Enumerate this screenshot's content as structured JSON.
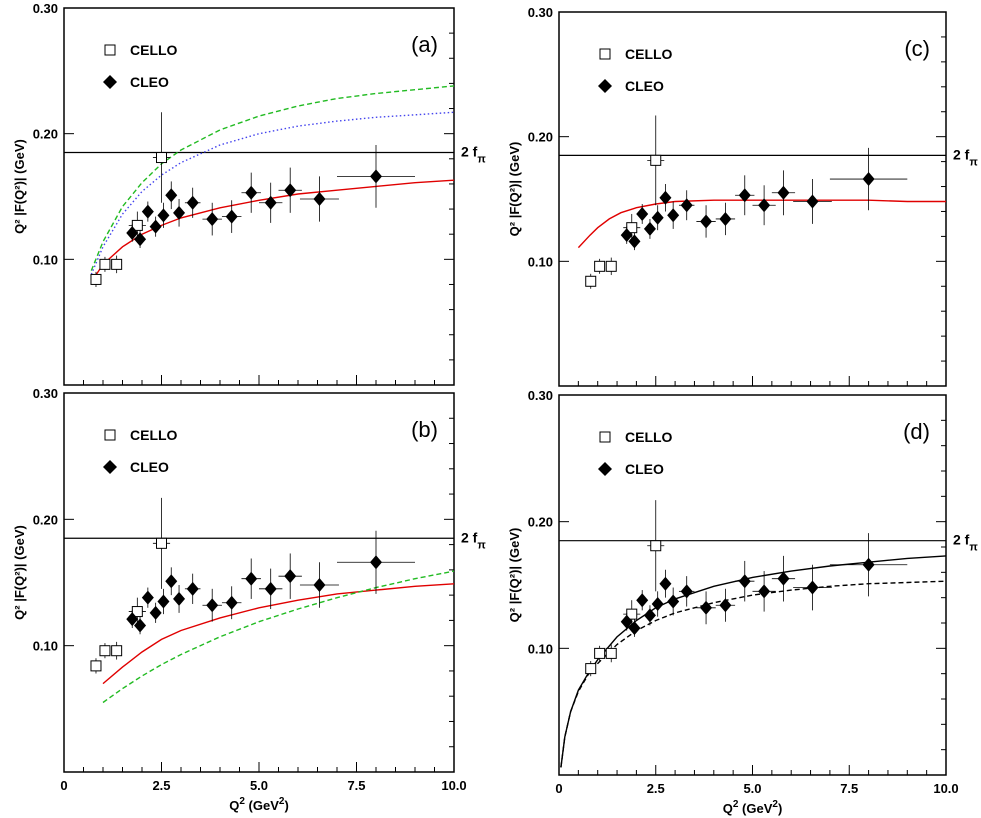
{
  "chart_data": {
    "shared": {
      "xlabel": "Q",
      "xlabel_sup": "2",
      "xlabel_unit": " (GeV",
      "xlabel_unit_sup": "2",
      "xlabel_unit_close": ")",
      "ylabel": "Q² |F(Q²)| (GeV)",
      "xlim": [
        0,
        10
      ],
      "ylim": [
        0,
        0.3
      ],
      "x_ticks": [
        0,
        2.5,
        5,
        7.5,
        10
      ],
      "x_tick_labels": [
        "0",
        "2.5",
        "5.0",
        "7.5",
        "10.0"
      ],
      "y_ticks": [
        0.1,
        0.2,
        0.3
      ],
      "y_tick_labels": [
        "0.10",
        "0.20",
        "0.30"
      ],
      "reference_line": {
        "y": 0.185,
        "label_main": "2 f",
        "label_sub": "π"
      },
      "legend": [
        {
          "name": "CELLO",
          "marker": "open-square"
        },
        {
          "name": "CLEO",
          "marker": "filled-diamond"
        }
      ],
      "cello": [
        {
          "x": 0.82,
          "y": 0.084,
          "xerr": 0.08,
          "yerr": 0.006
        },
        {
          "x": 1.05,
          "y": 0.096,
          "xerr": 0.13,
          "yerr": 0.006
        },
        {
          "x": 1.35,
          "y": 0.096,
          "xerr": 0.13,
          "yerr": 0.007
        },
        {
          "x": 1.88,
          "y": 0.127,
          "xerr": 0.22,
          "yerr": 0.011
        },
        {
          "x": 2.5,
          "y": 0.181,
          "xerr": 0.22,
          "yerr": 0.036
        }
      ],
      "cleo": [
        {
          "x": 1.75,
          "y": 0.121,
          "xerr": 0.1,
          "yerr": 0.007
        },
        {
          "x": 1.95,
          "y": 0.116,
          "xerr": 0.1,
          "yerr": 0.007
        },
        {
          "x": 2.15,
          "y": 0.138,
          "xerr": 0.1,
          "yerr": 0.008
        },
        {
          "x": 2.35,
          "y": 0.126,
          "xerr": 0.1,
          "yerr": 0.008
        },
        {
          "x": 2.55,
          "y": 0.135,
          "xerr": 0.1,
          "yerr": 0.01
        },
        {
          "x": 2.75,
          "y": 0.151,
          "xerr": 0.1,
          "yerr": 0.011
        },
        {
          "x": 2.95,
          "y": 0.137,
          "xerr": 0.1,
          "yerr": 0.011
        },
        {
          "x": 3.3,
          "y": 0.145,
          "xerr": 0.2,
          "yerr": 0.012
        },
        {
          "x": 3.8,
          "y": 0.132,
          "xerr": 0.25,
          "yerr": 0.013
        },
        {
          "x": 4.3,
          "y": 0.134,
          "xerr": 0.25,
          "yerr": 0.013
        },
        {
          "x": 4.8,
          "y": 0.153,
          "xerr": 0.25,
          "yerr": 0.016
        },
        {
          "x": 5.3,
          "y": 0.145,
          "xerr": 0.3,
          "yerr": 0.016
        },
        {
          "x": 5.8,
          "y": 0.155,
          "xerr": 0.3,
          "yerr": 0.018
        },
        {
          "x": 6.55,
          "y": 0.148,
          "xerr": 0.5,
          "yerr": 0.018
        },
        {
          "x": 8.0,
          "y": 0.166,
          "xerr": 1.0,
          "yerr": 0.025
        }
      ]
    },
    "panels": [
      {
        "id": "a",
        "label": "(a)",
        "show_y_tick_labels": true,
        "show_x_tick_labels": false,
        "show_xlabel": false,
        "series": [
          {
            "style": "solid",
            "color": "#e00000",
            "x": [
              0.7,
              1.0,
              1.5,
              2.0,
              2.5,
              3.0,
              4.0,
              5.0,
              6.0,
              7.0,
              8.0,
              9.0,
              10.0
            ],
            "y": [
              0.082,
              0.096,
              0.11,
              0.12,
              0.127,
              0.133,
              0.141,
              0.147,
              0.152,
              0.155,
              0.158,
              0.161,
              0.163
            ]
          },
          {
            "style": "dashed",
            "color": "#22bb22",
            "x": [
              0.7,
              1.0,
              1.5,
              2.0,
              2.5,
              3.0,
              4.0,
              5.0,
              6.0,
              7.0,
              8.0,
              9.0,
              10.0
            ],
            "y": [
              0.091,
              0.114,
              0.142,
              0.161,
              0.176,
              0.187,
              0.203,
              0.214,
              0.222,
              0.228,
              0.232,
              0.235,
              0.238
            ]
          },
          {
            "style": "dotted",
            "color": "#4444ee",
            "x": [
              0.7,
              1.0,
              1.5,
              2.0,
              2.5,
              3.0,
              4.0,
              5.0,
              6.0,
              7.0,
              8.0,
              9.0,
              10.0
            ],
            "y": [
              0.088,
              0.11,
              0.136,
              0.154,
              0.167,
              0.177,
              0.191,
              0.2,
              0.206,
              0.21,
              0.213,
              0.215,
              0.217
            ]
          }
        ]
      },
      {
        "id": "b",
        "label": "(b)",
        "show_y_tick_labels": true,
        "show_x_tick_labels": true,
        "show_xlabel": true,
        "series": [
          {
            "style": "solid",
            "color": "#e00000",
            "x": [
              1.0,
              1.5,
              2.0,
              2.5,
              3.0,
              4.0,
              5.0,
              6.0,
              7.0,
              8.0,
              9.0,
              10.0
            ],
            "y": [
              0.07,
              0.083,
              0.095,
              0.105,
              0.112,
              0.122,
              0.13,
              0.136,
              0.141,
              0.144,
              0.147,
              0.149
            ]
          },
          {
            "style": "dashed",
            "color": "#22bb22",
            "x": [
              1.0,
              1.5,
              2.0,
              2.5,
              3.0,
              4.0,
              5.0,
              6.0,
              7.0,
              8.0,
              9.0,
              10.0
            ],
            "y": [
              0.055,
              0.066,
              0.076,
              0.085,
              0.093,
              0.107,
              0.119,
              0.129,
              0.138,
              0.146,
              0.153,
              0.159
            ]
          }
        ]
      },
      {
        "id": "c",
        "label": "(c)",
        "show_y_tick_labels": true,
        "show_x_tick_labels": false,
        "show_xlabel": false,
        "series": [
          {
            "style": "solid",
            "color": "#e00000",
            "x": [
              0.5,
              0.8,
              1.0,
              1.3,
              1.6,
              2.0,
              2.5,
              3.0,
              4.0,
              5.0,
              6.0,
              7.0,
              8.0,
              9.0,
              10.0
            ],
            "y": [
              0.111,
              0.121,
              0.127,
              0.134,
              0.139,
              0.143,
              0.146,
              0.148,
              0.149,
              0.149,
              0.149,
              0.149,
              0.149,
              0.148,
              0.148
            ]
          }
        ]
      },
      {
        "id": "d",
        "label": "(d)",
        "show_y_tick_labels": true,
        "show_x_tick_labels": true,
        "show_xlabel": true,
        "series": [
          {
            "style": "solid",
            "color": "#000000",
            "x": [
              0.05,
              0.15,
              0.3,
              0.5,
              0.75,
              1.0,
              1.5,
              2.0,
              2.5,
              3.0,
              4.0,
              5.0,
              6.0,
              7.0,
              8.0,
              9.0,
              10.0
            ],
            "y": [
              0.006,
              0.03,
              0.05,
              0.067,
              0.08,
              0.091,
              0.109,
              0.122,
              0.132,
              0.139,
              0.149,
              0.156,
              0.161,
              0.165,
              0.168,
              0.171,
              0.173
            ]
          },
          {
            "style": "dashed",
            "color": "#000000",
            "x": [
              0.05,
              0.15,
              0.3,
              0.5,
              0.75,
              1.0,
              1.5,
              2.0,
              2.5,
              3.0,
              4.0,
              5.0,
              6.0,
              7.0,
              8.0,
              9.0,
              10.0
            ],
            "y": [
              0.006,
              0.03,
              0.05,
              0.066,
              0.079,
              0.088,
              0.103,
              0.114,
              0.122,
              0.128,
              0.136,
              0.142,
              0.146,
              0.149,
              0.151,
              0.152,
              0.153
            ]
          }
        ]
      }
    ]
  }
}
